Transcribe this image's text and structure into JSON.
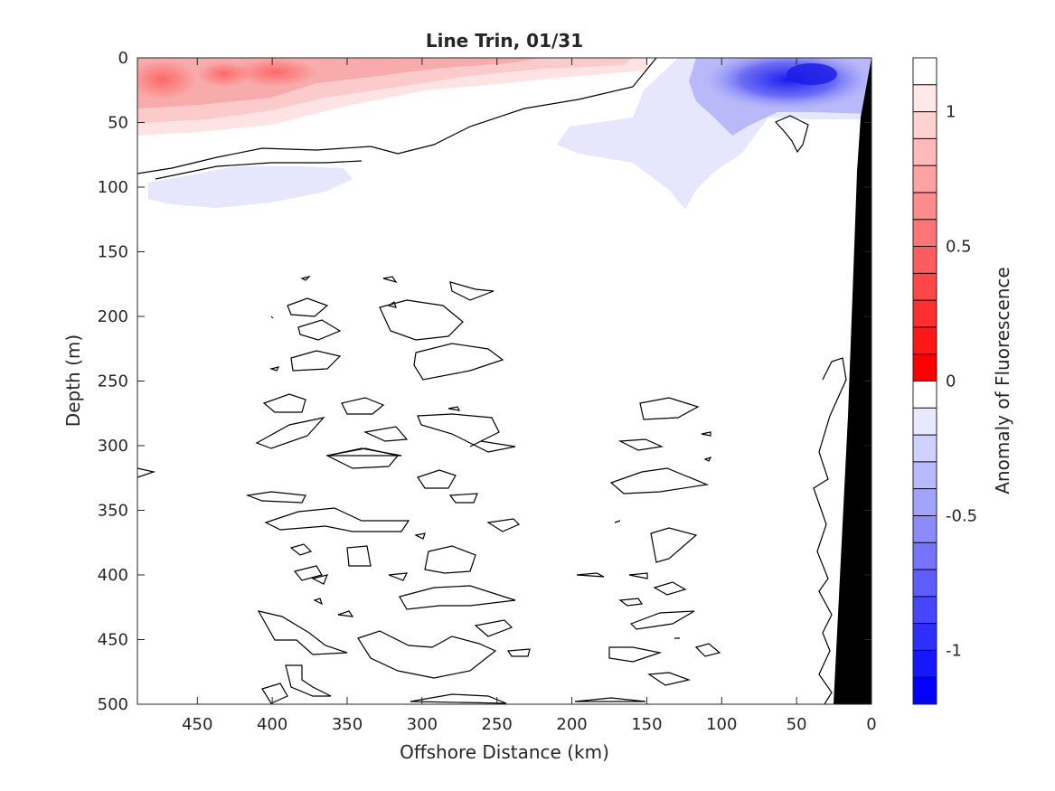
{
  "chart_data": {
    "type": "heatmap",
    "title": "Line Trin, 01/31",
    "xlabel": "Offshore Distance (km)",
    "ylabel": "Depth (m)",
    "xlim": [
      490,
      0
    ],
    "ylim": [
      0,
      500
    ],
    "x_reversed": true,
    "y_reversed": true,
    "x_ticks": [
      450,
      400,
      350,
      300,
      250,
      200,
      150,
      100,
      50,
      0
    ],
    "y_ticks": [
      0,
      50,
      100,
      150,
      200,
      250,
      300,
      350,
      400,
      450,
      500
    ],
    "colorbar": {
      "label": "Anomaly of Fluorescence",
      "range": [
        -1.2,
        1.2
      ],
      "ticks": [
        1,
        0.5,
        0,
        -0.5,
        -1
      ],
      "tick_labels": [
        "1",
        "0.5",
        "0",
        "-0.5",
        "-1"
      ],
      "levels": 24,
      "colormap": "blue-white-red",
      "positive_color": "#ff0000",
      "negative_color": "#0000ff",
      "zero_color": "#ffffff"
    },
    "features": [
      {
        "kind": "positive_anomaly",
        "x_range": [
          490,
          170
        ],
        "depth_range": [
          0,
          60
        ],
        "peak": 0.45
      },
      {
        "kind": "negative_anomaly",
        "x_range": [
          120,
          0
        ],
        "depth_range": [
          0,
          50
        ],
        "peak": -1.0
      },
      {
        "kind": "negative_anomaly",
        "x_range": [
          485,
          330
        ],
        "depth_range": [
          85,
          115
        ],
        "peak": -0.1
      },
      {
        "kind": "negative_anomaly",
        "x_range": [
          210,
          115
        ],
        "depth_range": [
          20,
          120
        ],
        "peak": -0.15
      },
      {
        "kind": "zero_contour_noise",
        "x_range": [
          490,
          0
        ],
        "depth_range": [
          170,
          500
        ]
      },
      {
        "kind": "bathymetry",
        "x_range": [
          30,
          0
        ],
        "depth_range": [
          0,
          500
        ],
        "color": "#000000"
      }
    ]
  }
}
